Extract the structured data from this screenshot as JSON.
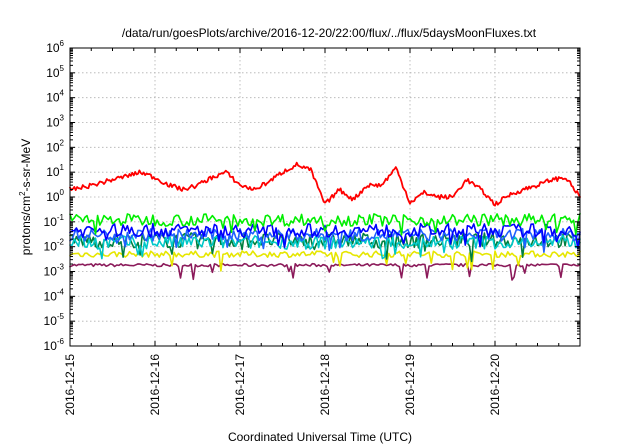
{
  "chart_data": {
    "type": "line",
    "title": "/data/run/goesPlots/archive/2016-12-20/22:00/flux/../flux/5daysMoonFluxes.txt",
    "xlabel": "Coordinated Universal Time (UTC)",
    "ylabel": {
      "base": "protons/cm",
      "sup": "2",
      "rest": "-s-sr-MeV"
    },
    "xlim": [
      "2016-12-15",
      "2016-12-21"
    ],
    "x_ticks": [
      "2016-12-15",
      "2016-12-16",
      "2016-12-17",
      "2016-12-18",
      "2016-12-19",
      "2016-12-20"
    ],
    "yscale": "log",
    "ylim": [
      1e-06,
      1000000.0
    ],
    "y_ticks": [
      {
        "base": "10",
        "exp": "-6"
      },
      {
        "base": "10",
        "exp": "-5"
      },
      {
        "base": "10",
        "exp": "-4"
      },
      {
        "base": "10",
        "exp": "-3"
      },
      {
        "base": "10",
        "exp": "-2"
      },
      {
        "base": "10",
        "exp": "-1"
      },
      {
        "base": "10",
        "exp": "0"
      },
      {
        "base": "10",
        "exp": "1"
      },
      {
        "base": "10",
        "exp": "2"
      },
      {
        "base": "10",
        "exp": "3"
      },
      {
        "base": "10",
        "exp": "4"
      },
      {
        "base": "10",
        "exp": "5"
      },
      {
        "base": "10",
        "exp": "6"
      }
    ],
    "grid": true,
    "series": [
      {
        "color": "#ff0000",
        "points": [
          [
            "2016-12-15T00:00",
            2.0
          ],
          [
            "2016-12-15T04:00",
            2.5
          ],
          [
            "2016-12-15T08:00",
            3.5
          ],
          [
            "2016-12-15T12:00",
            5.0
          ],
          [
            "2016-12-15T16:00",
            7.0
          ],
          [
            "2016-12-15T20:00",
            10.0
          ],
          [
            "2016-12-16T00:00",
            6.0
          ],
          [
            "2016-12-16T04:00",
            3.0
          ],
          [
            "2016-12-16T08:00",
            2.0
          ],
          [
            "2016-12-16T12:00",
            3.0
          ],
          [
            "2016-12-16T16:00",
            6.0
          ],
          [
            "2016-12-16T20:00",
            10.0
          ],
          [
            "2016-12-17T00:00",
            3.0
          ],
          [
            "2016-12-17T04:00",
            2.0
          ],
          [
            "2016-12-17T08:00",
            4.0
          ],
          [
            "2016-12-17T12:00",
            10.0
          ],
          [
            "2016-12-17T16:00",
            20.0
          ],
          [
            "2016-12-17T20:00",
            12.0
          ],
          [
            "2016-12-18T00:00",
            0.5
          ],
          [
            "2016-12-18T04:00",
            2.0
          ],
          [
            "2016-12-18T08:00",
            0.8
          ],
          [
            "2016-12-18T12:00",
            3.0
          ],
          [
            "2016-12-18T16:00",
            3.0
          ],
          [
            "2016-12-18T20:00",
            15.0
          ],
          [
            "2016-12-19T00:00",
            0.6
          ],
          [
            "2016-12-19T04:00",
            1.5
          ],
          [
            "2016-12-19T08:00",
            1.0
          ],
          [
            "2016-12-19T12:00",
            1.0
          ],
          [
            "2016-12-19T16:00",
            5.0
          ],
          [
            "2016-12-19T20:00",
            2.0
          ],
          [
            "2016-12-20T00:00",
            0.5
          ],
          [
            "2016-12-20T04:00",
            1.2
          ],
          [
            "2016-12-20T08:00",
            2.0
          ],
          [
            "2016-12-20T12:00",
            3.0
          ],
          [
            "2016-12-20T16:00",
            5.0
          ],
          [
            "2016-12-20T20:00",
            6.0
          ],
          [
            "2016-12-21T00:00",
            1.0
          ]
        ]
      },
      {
        "color": "#00ee00",
        "level": 0.12,
        "spread": 0.5,
        "dips": true
      },
      {
        "color": "#0000ff",
        "level": 0.045,
        "spread": 0.55,
        "dips": true
      },
      {
        "color": "#2060ff",
        "level": 0.03,
        "spread": 0.5,
        "dips": true
      },
      {
        "color": "#00c8c8",
        "level": 0.015,
        "spread": 0.55,
        "dips": true
      },
      {
        "color": "#008040",
        "level": 0.018,
        "spread": 0.6,
        "dips": true
      },
      {
        "color": "#e6e600",
        "level": 0.005,
        "spread": 0.25,
        "dips": true
      },
      {
        "color": "#8b1a5a",
        "level": 0.0018,
        "spread": 0.12,
        "dips": true
      }
    ]
  }
}
